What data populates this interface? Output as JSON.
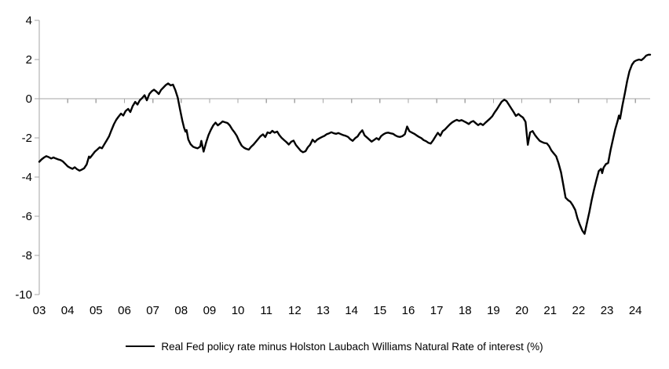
{
  "chart": {
    "legend_label": "Real Fed policy rate minus Holston Laubach Williams Natural Rate of interest (%)",
    "colors": {
      "series": "#000000",
      "axis": "#a6a6a6",
      "text": "#000000",
      "background": "#ffffff"
    }
  },
  "chart_data": {
    "type": "line",
    "title": "",
    "xlabel": "",
    "ylabel": "",
    "grid": false,
    "zero_line": true,
    "legend_position": "bottom-center",
    "ylim": [
      -10,
      4
    ],
    "xlim": [
      2003,
      2024.52
    ],
    "y_ticks": [
      4,
      2,
      0,
      -2,
      -4,
      -6,
      -8,
      -10
    ],
    "x_ticks": [
      {
        "year": 2003,
        "label": "03"
      },
      {
        "year": 2004,
        "label": "04"
      },
      {
        "year": 2005,
        "label": "05"
      },
      {
        "year": 2006,
        "label": "06"
      },
      {
        "year": 2007,
        "label": "07"
      },
      {
        "year": 2008,
        "label": "08"
      },
      {
        "year": 2009,
        "label": "09"
      },
      {
        "year": 2010,
        "label": "10"
      },
      {
        "year": 2011,
        "label": "11"
      },
      {
        "year": 2012,
        "label": "12"
      },
      {
        "year": 2013,
        "label": "13"
      },
      {
        "year": 2014,
        "label": "14"
      },
      {
        "year": 2015,
        "label": "15"
      },
      {
        "year": 2016,
        "label": "16"
      },
      {
        "year": 2017,
        "label": "17"
      },
      {
        "year": 2018,
        "label": "18"
      },
      {
        "year": 2019,
        "label": "19"
      },
      {
        "year": 2020,
        "label": "20"
      },
      {
        "year": 2021,
        "label": "21"
      },
      {
        "year": 2022,
        "label": "22"
      },
      {
        "year": 2023,
        "label": "23"
      },
      {
        "year": 2024,
        "label": "24"
      }
    ],
    "series": [
      {
        "name": "Real Fed policy rate minus Holston Laubach Williams Natural Rate of interest (%)",
        "color": "#000000",
        "points": [
          [
            2003.0,
            -3.22
          ],
          [
            2003.08,
            -3.1
          ],
          [
            2003.17,
            -3.0
          ],
          [
            2003.25,
            -2.93
          ],
          [
            2003.33,
            -2.98
          ],
          [
            2003.42,
            -3.05
          ],
          [
            2003.5,
            -3.0
          ],
          [
            2003.58,
            -3.05
          ],
          [
            2003.67,
            -3.1
          ],
          [
            2003.75,
            -3.13
          ],
          [
            2003.83,
            -3.2
          ],
          [
            2003.92,
            -3.33
          ],
          [
            2004.0,
            -3.45
          ],
          [
            2004.08,
            -3.52
          ],
          [
            2004.17,
            -3.58
          ],
          [
            2004.25,
            -3.5
          ],
          [
            2004.33,
            -3.6
          ],
          [
            2004.42,
            -3.67
          ],
          [
            2004.5,
            -3.62
          ],
          [
            2004.58,
            -3.55
          ],
          [
            2004.67,
            -3.35
          ],
          [
            2004.75,
            -2.95
          ],
          [
            2004.79,
            -3.02
          ],
          [
            2004.88,
            -2.85
          ],
          [
            2004.96,
            -2.7
          ],
          [
            2005.04,
            -2.6
          ],
          [
            2005.13,
            -2.48
          ],
          [
            2005.21,
            -2.53
          ],
          [
            2005.29,
            -2.33
          ],
          [
            2005.38,
            -2.12
          ],
          [
            2005.46,
            -1.92
          ],
          [
            2005.54,
            -1.62
          ],
          [
            2005.63,
            -1.3
          ],
          [
            2005.71,
            -1.08
          ],
          [
            2005.79,
            -0.92
          ],
          [
            2005.88,
            -0.76
          ],
          [
            2005.96,
            -0.86
          ],
          [
            2006.04,
            -0.63
          ],
          [
            2006.13,
            -0.52
          ],
          [
            2006.21,
            -0.68
          ],
          [
            2006.29,
            -0.38
          ],
          [
            2006.38,
            -0.16
          ],
          [
            2006.46,
            -0.3
          ],
          [
            2006.54,
            -0.08
          ],
          [
            2006.63,
            0.04
          ],
          [
            2006.71,
            0.18
          ],
          [
            2006.79,
            -0.08
          ],
          [
            2006.88,
            0.25
          ],
          [
            2006.96,
            0.38
          ],
          [
            2007.04,
            0.46
          ],
          [
            2007.13,
            0.36
          ],
          [
            2007.21,
            0.24
          ],
          [
            2007.29,
            0.45
          ],
          [
            2007.38,
            0.58
          ],
          [
            2007.46,
            0.7
          ],
          [
            2007.54,
            0.78
          ],
          [
            2007.63,
            0.68
          ],
          [
            2007.71,
            0.72
          ],
          [
            2007.79,
            0.45
          ],
          [
            2007.88,
            0.05
          ],
          [
            2007.96,
            -0.55
          ],
          [
            2008.04,
            -1.12
          ],
          [
            2008.1,
            -1.48
          ],
          [
            2008.15,
            -1.68
          ],
          [
            2008.19,
            -1.6
          ],
          [
            2008.25,
            -2.08
          ],
          [
            2008.33,
            -2.32
          ],
          [
            2008.42,
            -2.45
          ],
          [
            2008.5,
            -2.5
          ],
          [
            2008.58,
            -2.53
          ],
          [
            2008.67,
            -2.44
          ],
          [
            2008.71,
            -2.15
          ],
          [
            2008.79,
            -2.7
          ],
          [
            2008.88,
            -2.22
          ],
          [
            2008.96,
            -1.86
          ],
          [
            2009.04,
            -1.6
          ],
          [
            2009.13,
            -1.36
          ],
          [
            2009.21,
            -1.22
          ],
          [
            2009.29,
            -1.36
          ],
          [
            2009.38,
            -1.26
          ],
          [
            2009.46,
            -1.16
          ],
          [
            2009.54,
            -1.2
          ],
          [
            2009.63,
            -1.24
          ],
          [
            2009.71,
            -1.36
          ],
          [
            2009.79,
            -1.55
          ],
          [
            2009.88,
            -1.72
          ],
          [
            2009.96,
            -1.9
          ],
          [
            2010.04,
            -2.16
          ],
          [
            2010.13,
            -2.4
          ],
          [
            2010.21,
            -2.5
          ],
          [
            2010.29,
            -2.56
          ],
          [
            2010.38,
            -2.6
          ],
          [
            2010.46,
            -2.46
          ],
          [
            2010.54,
            -2.35
          ],
          [
            2010.63,
            -2.2
          ],
          [
            2010.71,
            -2.06
          ],
          [
            2010.79,
            -1.92
          ],
          [
            2010.88,
            -1.82
          ],
          [
            2010.96,
            -1.96
          ],
          [
            2011.04,
            -1.72
          ],
          [
            2011.13,
            -1.76
          ],
          [
            2011.21,
            -1.64
          ],
          [
            2011.29,
            -1.73
          ],
          [
            2011.38,
            -1.68
          ],
          [
            2011.46,
            -1.86
          ],
          [
            2011.54,
            -2.0
          ],
          [
            2011.63,
            -2.12
          ],
          [
            2011.71,
            -2.22
          ],
          [
            2011.79,
            -2.34
          ],
          [
            2011.88,
            -2.19
          ],
          [
            2011.96,
            -2.14
          ],
          [
            2012.04,
            -2.36
          ],
          [
            2012.13,
            -2.52
          ],
          [
            2012.21,
            -2.66
          ],
          [
            2012.29,
            -2.73
          ],
          [
            2012.38,
            -2.68
          ],
          [
            2012.46,
            -2.48
          ],
          [
            2012.54,
            -2.35
          ],
          [
            2012.63,
            -2.09
          ],
          [
            2012.71,
            -2.21
          ],
          [
            2012.79,
            -2.09
          ],
          [
            2012.88,
            -2.01
          ],
          [
            2012.96,
            -1.95
          ],
          [
            2013.04,
            -1.9
          ],
          [
            2013.13,
            -1.81
          ],
          [
            2013.21,
            -1.77
          ],
          [
            2013.29,
            -1.71
          ],
          [
            2013.38,
            -1.77
          ],
          [
            2013.46,
            -1.79
          ],
          [
            2013.54,
            -1.75
          ],
          [
            2013.63,
            -1.81
          ],
          [
            2013.71,
            -1.86
          ],
          [
            2013.79,
            -1.89
          ],
          [
            2013.88,
            -1.95
          ],
          [
            2013.96,
            -2.07
          ],
          [
            2014.04,
            -2.15
          ],
          [
            2014.13,
            -2.01
          ],
          [
            2014.21,
            -1.93
          ],
          [
            2014.29,
            -1.75
          ],
          [
            2014.38,
            -1.61
          ],
          [
            2014.46,
            -1.87
          ],
          [
            2014.54,
            -1.97
          ],
          [
            2014.63,
            -2.09
          ],
          [
            2014.71,
            -2.19
          ],
          [
            2014.79,
            -2.11
          ],
          [
            2014.88,
            -2.01
          ],
          [
            2014.96,
            -2.09
          ],
          [
            2015.04,
            -1.91
          ],
          [
            2015.13,
            -1.81
          ],
          [
            2015.21,
            -1.75
          ],
          [
            2015.29,
            -1.73
          ],
          [
            2015.38,
            -1.77
          ],
          [
            2015.46,
            -1.79
          ],
          [
            2015.54,
            -1.87
          ],
          [
            2015.63,
            -1.93
          ],
          [
            2015.71,
            -1.95
          ],
          [
            2015.79,
            -1.91
          ],
          [
            2015.88,
            -1.81
          ],
          [
            2015.96,
            -1.42
          ],
          [
            2016.04,
            -1.66
          ],
          [
            2016.13,
            -1.73
          ],
          [
            2016.21,
            -1.79
          ],
          [
            2016.29,
            -1.87
          ],
          [
            2016.38,
            -1.95
          ],
          [
            2016.46,
            -2.01
          ],
          [
            2016.54,
            -2.11
          ],
          [
            2016.63,
            -2.17
          ],
          [
            2016.71,
            -2.25
          ],
          [
            2016.79,
            -2.29
          ],
          [
            2016.88,
            -2.11
          ],
          [
            2016.96,
            -1.92
          ],
          [
            2017.04,
            -1.74
          ],
          [
            2017.13,
            -1.89
          ],
          [
            2017.21,
            -1.66
          ],
          [
            2017.29,
            -1.57
          ],
          [
            2017.38,
            -1.43
          ],
          [
            2017.46,
            -1.31
          ],
          [
            2017.54,
            -1.21
          ],
          [
            2017.63,
            -1.13
          ],
          [
            2017.71,
            -1.08
          ],
          [
            2017.79,
            -1.13
          ],
          [
            2017.88,
            -1.09
          ],
          [
            2017.96,
            -1.15
          ],
          [
            2018.04,
            -1.21
          ],
          [
            2018.13,
            -1.29
          ],
          [
            2018.21,
            -1.19
          ],
          [
            2018.29,
            -1.14
          ],
          [
            2018.38,
            -1.25
          ],
          [
            2018.46,
            -1.35
          ],
          [
            2018.54,
            -1.27
          ],
          [
            2018.63,
            -1.35
          ],
          [
            2018.71,
            -1.23
          ],
          [
            2018.79,
            -1.13
          ],
          [
            2018.88,
            -1.01
          ],
          [
            2018.96,
            -0.89
          ],
          [
            2019.04,
            -0.7
          ],
          [
            2019.13,
            -0.52
          ],
          [
            2019.21,
            -0.33
          ],
          [
            2019.29,
            -0.15
          ],
          [
            2019.38,
            -0.05
          ],
          [
            2019.46,
            -0.12
          ],
          [
            2019.54,
            -0.3
          ],
          [
            2019.63,
            -0.5
          ],
          [
            2019.71,
            -0.68
          ],
          [
            2019.79,
            -0.88
          ],
          [
            2019.88,
            -0.78
          ],
          [
            2019.96,
            -0.88
          ],
          [
            2020.04,
            -0.96
          ],
          [
            2020.13,
            -1.18
          ],
          [
            2020.21,
            -2.35
          ],
          [
            2020.29,
            -1.72
          ],
          [
            2020.38,
            -1.65
          ],
          [
            2020.46,
            -1.85
          ],
          [
            2020.54,
            -2.0
          ],
          [
            2020.63,
            -2.15
          ],
          [
            2020.71,
            -2.21
          ],
          [
            2020.79,
            -2.26
          ],
          [
            2020.88,
            -2.28
          ],
          [
            2020.96,
            -2.42
          ],
          [
            2021.04,
            -2.64
          ],
          [
            2021.13,
            -2.8
          ],
          [
            2021.21,
            -2.94
          ],
          [
            2021.29,
            -3.28
          ],
          [
            2021.38,
            -3.76
          ],
          [
            2021.46,
            -4.4
          ],
          [
            2021.54,
            -5.05
          ],
          [
            2021.63,
            -5.18
          ],
          [
            2021.71,
            -5.26
          ],
          [
            2021.79,
            -5.43
          ],
          [
            2021.88,
            -5.68
          ],
          [
            2021.96,
            -6.1
          ],
          [
            2022.04,
            -6.42
          ],
          [
            2022.13,
            -6.73
          ],
          [
            2022.21,
            -6.9
          ],
          [
            2022.29,
            -6.36
          ],
          [
            2022.38,
            -5.78
          ],
          [
            2022.46,
            -5.18
          ],
          [
            2022.54,
            -4.66
          ],
          [
            2022.63,
            -4.13
          ],
          [
            2022.71,
            -3.69
          ],
          [
            2022.79,
            -3.58
          ],
          [
            2022.83,
            -3.8
          ],
          [
            2022.88,
            -3.52
          ],
          [
            2022.96,
            -3.34
          ],
          [
            2023.04,
            -3.28
          ],
          [
            2023.13,
            -2.6
          ],
          [
            2023.21,
            -2.08
          ],
          [
            2023.29,
            -1.56
          ],
          [
            2023.38,
            -1.1
          ],
          [
            2023.42,
            -0.86
          ],
          [
            2023.46,
            -1.02
          ],
          [
            2023.54,
            -0.36
          ],
          [
            2023.63,
            0.28
          ],
          [
            2023.71,
            0.9
          ],
          [
            2023.79,
            1.4
          ],
          [
            2023.88,
            1.74
          ],
          [
            2023.96,
            1.9
          ],
          [
            2024.04,
            1.96
          ],
          [
            2024.13,
            2.0
          ],
          [
            2024.21,
            1.97
          ],
          [
            2024.29,
            2.06
          ],
          [
            2024.38,
            2.2
          ],
          [
            2024.46,
            2.25
          ],
          [
            2024.52,
            2.25
          ]
        ]
      }
    ]
  }
}
